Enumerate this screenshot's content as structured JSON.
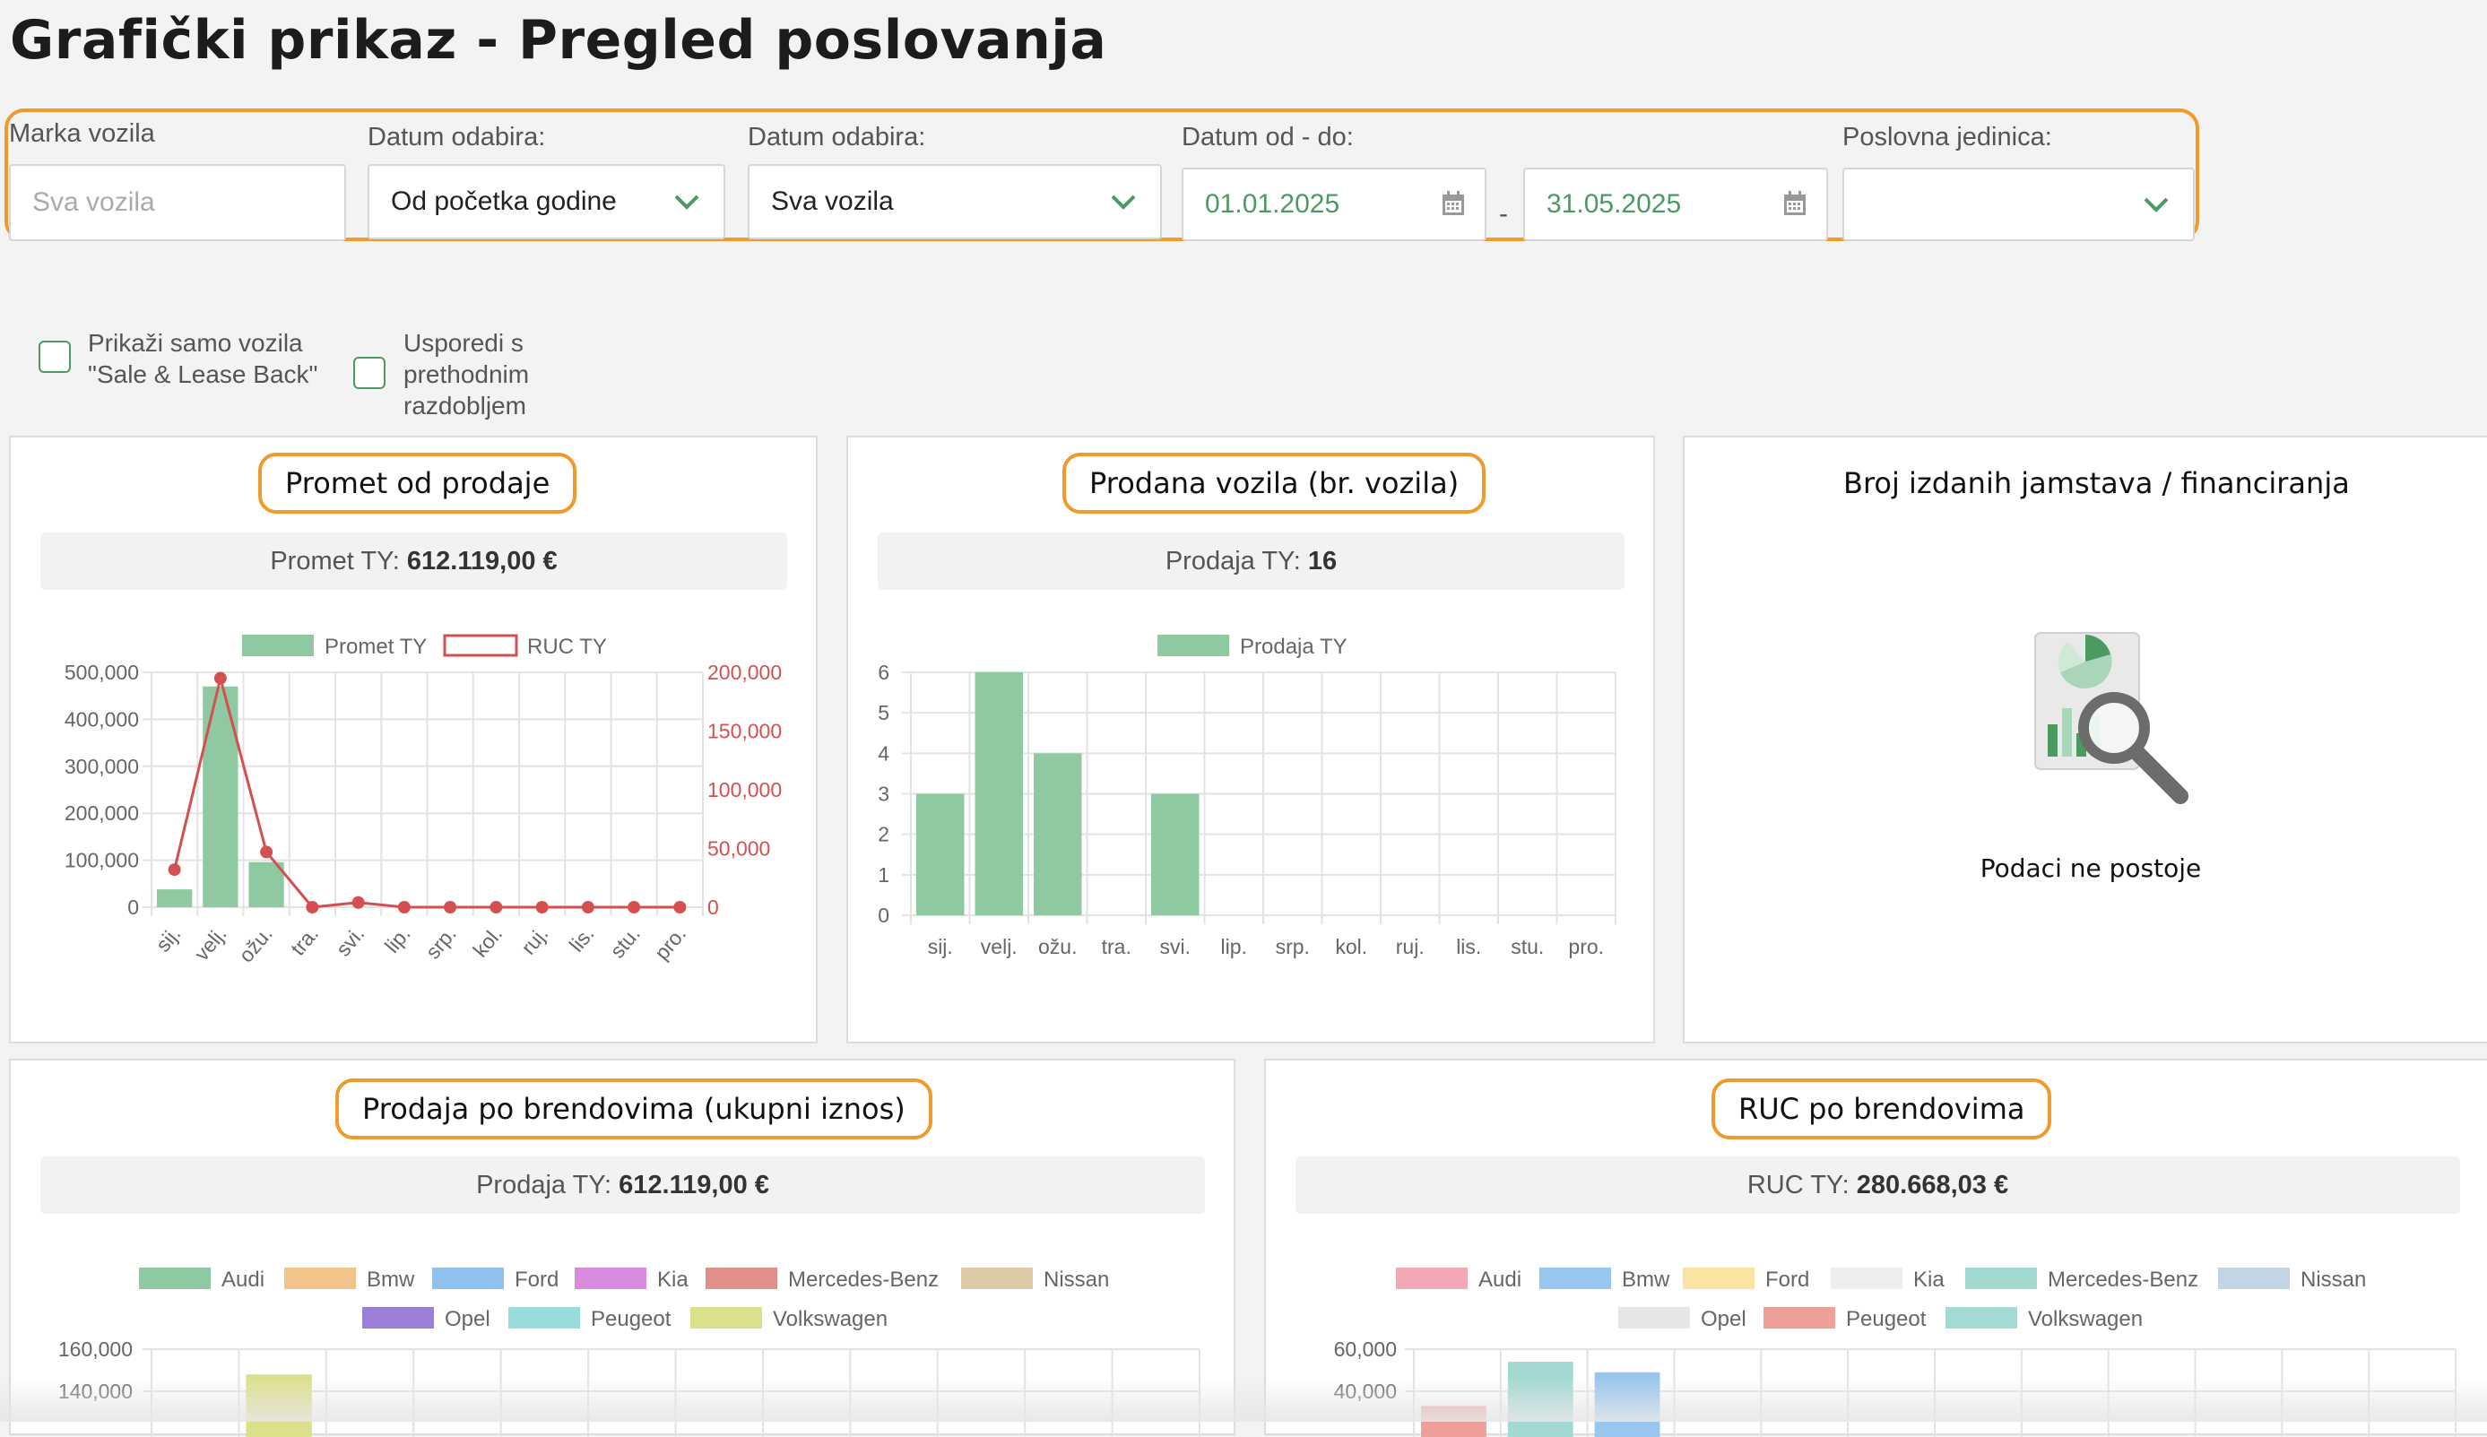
{
  "page_title": "Grafički prikaz - Pregled poslovanja",
  "filters": {
    "brand": {
      "label": "Marka vozila",
      "placeholder": "Sva vozila"
    },
    "date_choice_1": {
      "label": "Datum odabira:",
      "value": "Od početka godine"
    },
    "date_choice_2": {
      "label": "Datum odabira:",
      "value": "Sva vozila"
    },
    "date_range": {
      "label": "Datum od - do:",
      "from": "01.01.2025",
      "separator": "-",
      "to": "31.05.2025"
    },
    "business_unit": {
      "label": "Poslovna jedinica:",
      "value": ""
    }
  },
  "checkboxes": [
    {
      "label_lines": [
        "Prikaži samo vozila",
        "\"Sale & Lease Back\""
      ],
      "checked": false
    },
    {
      "label_lines": [
        "Usporedi s",
        "prethodnim",
        "razdobljem"
      ],
      "checked": false
    }
  ],
  "cards": {
    "promet": {
      "title": "Promet od prodaje",
      "summary_label": "Promet TY: ",
      "summary_value": "612.119,00  €"
    },
    "prodana": {
      "title": "Prodana vozila (br. vozila)",
      "summary_label": "Prodaja TY: ",
      "summary_value": "16"
    },
    "jamstva": {
      "title": "Broj izdanih jamstava / financiranja",
      "empty_text": "Podaci ne postoje",
      "icon": "report-search-icon"
    },
    "brendovi": {
      "title": "Prodaja po brendovima (ukupni iznos)",
      "summary_label": "Prodaja TY: ",
      "summary_value": "612.119,00  €"
    },
    "ruc_brendovi": {
      "title": "RUC po brendovima",
      "summary_label": "RUC TY: ",
      "summary_value": "280.668,03  €"
    }
  },
  "colors": {
    "accent_orange": "#ef9a2b",
    "green": "#4a9a62",
    "bar_green": "#8fc9a1",
    "line_red": "#d45050"
  },
  "chart_data": [
    {
      "type": "bar",
      "categories": [
        "sij.",
        "velj.",
        "ožu.",
        "tra.",
        "svi.",
        "lip.",
        "srp.",
        "kol.",
        "ruj.",
        "lis.",
        "stu.",
        "pro."
      ],
      "series": [
        {
          "name": "Promet TY",
          "type": "bar",
          "axis": "left",
          "color": "#8fc9a1",
          "values": [
            38000,
            470000,
            96000,
            0,
            0,
            0,
            0,
            0,
            0,
            0,
            0,
            0
          ]
        },
        {
          "name": "RUC TY",
          "type": "line",
          "axis": "right",
          "color": "#d45050",
          "values": [
            32000,
            195000,
            47000,
            0,
            4000,
            0,
            0,
            0,
            0,
            0,
            0,
            0
          ]
        }
      ],
      "y_left": {
        "min": 0,
        "max": 500000,
        "ticks": [
          "500,000",
          "400,000",
          "300,000",
          "200,000",
          "100,000",
          "0"
        ]
      },
      "y_right": {
        "min": 0,
        "max": 200000,
        "ticks": [
          "200,000",
          "150,000",
          "100,000",
          "50,000",
          "0"
        ]
      },
      "legend_position": "top",
      "grid": true
    },
    {
      "type": "bar",
      "categories": [
        "sij.",
        "velj.",
        "ožu.",
        "tra.",
        "svi.",
        "lip.",
        "srp.",
        "kol.",
        "ruj.",
        "lis.",
        "stu.",
        "pro."
      ],
      "series": [
        {
          "name": "Prodaja TY",
          "color": "#8fc9a1",
          "values": [
            3,
            6,
            4,
            0,
            3,
            0,
            0,
            0,
            0,
            0,
            0,
            0
          ]
        }
      ],
      "ylim": [
        0,
        6
      ],
      "y_ticks": [
        "6",
        "5",
        "4",
        "3",
        "2",
        "1",
        "0"
      ],
      "legend_position": "top",
      "grid": true
    },
    {
      "type": "bar",
      "legend": [
        {
          "name": "Audi",
          "color": "#8fc9a1"
        },
        {
          "name": "Bmw",
          "color": "#f2c48a"
        },
        {
          "name": "Ford",
          "color": "#8fc0ee"
        },
        {
          "name": "Kia",
          "color": "#d98be0"
        },
        {
          "name": "Mercedes-Benz",
          "color": "#e18f8b"
        },
        {
          "name": "Nissan",
          "color": "#dccaa5"
        },
        {
          "name": "Opel",
          "color": "#9b7ed8"
        },
        {
          "name": "Peugeot",
          "color": "#9adcdc"
        },
        {
          "name": "Volkswagen",
          "color": "#dde08a"
        }
      ],
      "y_ticks": [
        "160,000",
        "140,000"
      ],
      "visible_bars": [
        {
          "series": "Volkswagen",
          "value": 148000
        }
      ],
      "legend_position": "top",
      "grid": true
    },
    {
      "type": "bar",
      "legend": [
        {
          "name": "Audi",
          "color": "#f1a8b4"
        },
        {
          "name": "Bmw",
          "color": "#98c6ee"
        },
        {
          "name": "Ford",
          "color": "#fbe3a3"
        },
        {
          "name": "Kia",
          "color": "#eeeeee"
        },
        {
          "name": "Mercedes-Benz",
          "color": "#a4d9d3"
        },
        {
          "name": "Nissan",
          "color": "#c3d4e4"
        },
        {
          "name": "Opel",
          "color": "#e6e6e6"
        },
        {
          "name": "Peugeot",
          "color": "#ef9f9a"
        },
        {
          "name": "Volkswagen",
          "color": "#a4dad6"
        }
      ],
      "y_ticks": [
        "60,000",
        "40,000"
      ],
      "visible_bars": [
        {
          "series": "Peugeot",
          "value": 33000
        },
        {
          "series": "Mercedes-Benz",
          "value": 54000
        },
        {
          "series": "Bmw",
          "value": 49000
        }
      ],
      "legend_position": "top",
      "grid": true
    }
  ]
}
